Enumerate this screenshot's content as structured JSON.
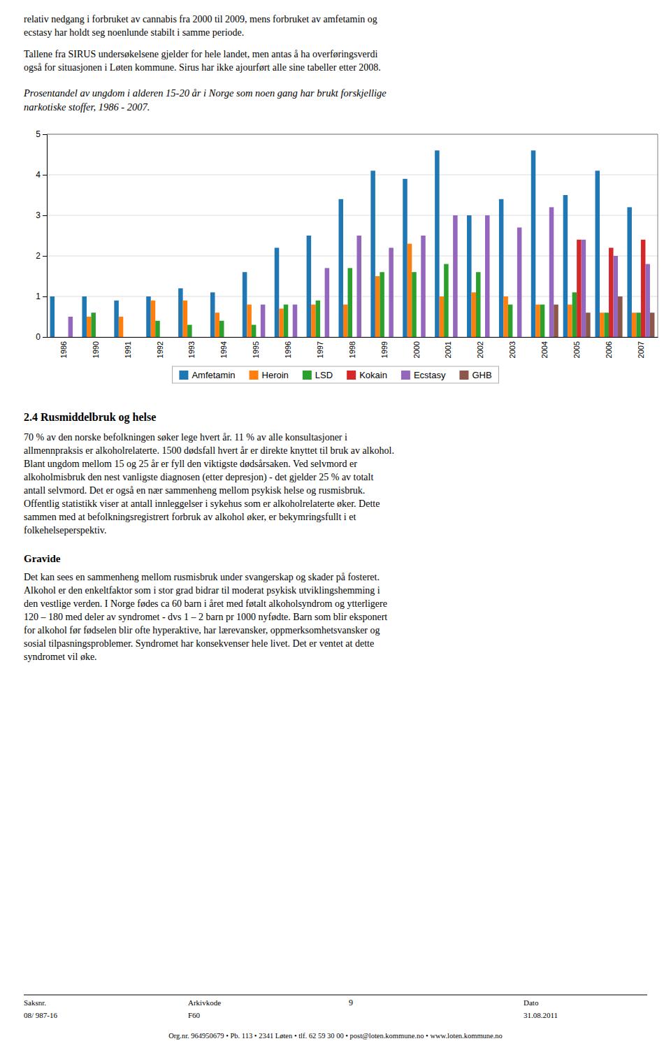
{
  "chart_data": {
    "type": "bar",
    "title": "Prosentandel av ungdom i alderen 15-20 år i Norge som noen gang har brukt forskjellige\nnarkotiske stoffer, 1986 - 2007.",
    "categories": [
      "1986",
      "1990",
      "1991",
      "1992",
      "1993",
      "1994",
      "1995",
      "1996",
      "1997",
      "1998",
      "1999",
      "2000",
      "2001",
      "2002",
      "2003",
      "2004",
      "2005",
      "2006",
      "2007"
    ],
    "series": [
      {
        "name": "Amfetamin",
        "values": [
          1.0,
          1.0,
          0.9,
          1.0,
          1.2,
          1.1,
          1.6,
          2.2,
          2.5,
          3.4,
          4.1,
          3.9,
          4.6,
          3.0,
          3.4,
          4.6,
          3.5,
          4.1,
          3.2
        ]
      },
      {
        "name": "Heroin",
        "values": [
          0.0,
          0.5,
          0.5,
          0.9,
          0.9,
          0.6,
          0.8,
          0.7,
          0.8,
          0.8,
          1.5,
          2.3,
          1.0,
          1.1,
          1.0,
          0.8,
          0.8,
          0.6,
          0.6
        ]
      },
      {
        "name": "LSD",
        "values": [
          0.0,
          0.6,
          0.0,
          0.4,
          0.3,
          0.4,
          0.3,
          0.8,
          0.9,
          1.7,
          1.6,
          1.6,
          1.8,
          1.6,
          0.8,
          0.8,
          1.1,
          0.6,
          0.6
        ]
      },
      {
        "name": "Kokain",
        "values": [
          0.0,
          0.0,
          0.0,
          0.0,
          0.0,
          0.0,
          0.0,
          0.0,
          0.0,
          0.0,
          0.0,
          0.0,
          0.0,
          0.0,
          0.0,
          0.0,
          2.4,
          2.2,
          2.4
        ]
      },
      {
        "name": "Ecstasy",
        "values": [
          0.5,
          0.0,
          0.0,
          0.0,
          0.0,
          0.0,
          0.8,
          0.8,
          1.7,
          2.5,
          2.2,
          2.5,
          3.0,
          3.0,
          2.7,
          3.2,
          2.4,
          2.0,
          1.8
        ]
      },
      {
        "name": "GHB",
        "values": [
          0.0,
          0.0,
          0.0,
          0.0,
          0.0,
          0.0,
          0.0,
          0.0,
          0.0,
          0.0,
          0.0,
          0.0,
          0.0,
          0.0,
          0.0,
          0.8,
          0.6,
          1.0,
          0.6
        ]
      }
    ],
    "ylim": [
      0,
      5
    ],
    "yticks": [
      0,
      1,
      2,
      3,
      4,
      5
    ],
    "grid": true,
    "legend": "bottom"
  },
  "page_text": {
    "paragraphs": [
      [
        "relativ nedgang i forbruket av cannabis fra 2000 til 2009, mens forbruket av amfetamin og",
        "ecstasy har holdt seg noenlunde stabilt i samme periode."
      ],
      [
        "Tallene fra SIRUS undersøkelsene gjelder for hele landet, men antas å ha overføringsverdi",
        "også for situasjonen i Løten kommune. Sirus har ikke ajourført alle sine tabeller etter 2008."
      ]
    ],
    "section_head": "2.4 Rusmiddelbruk og helse",
    "body1": [
      "70 % av den norske befolkningen søker lege hvert år. 11 % av alle konsultasjoner i",
      "allmennpraksis er alkoholrelaterte. 1500 dødsfall hvert år er direkte knyttet til bruk av alkohol.",
      "Blant ungdom mellom 15 og 25 år er fyll den viktigste dødsårsaken. Ved selvmord er",
      "alkoholmisbruk den nest vanligste diagnosen (etter depresjon) - det gjelder 25 % av totalt",
      "antall selvmord. Det er også en nær sammenheng mellom psykisk helse og rusmisbruk.",
      "Offentlig statistikk viser at antall innleggelser i sykehus som er alkoholrelaterte øker. Dette",
      "sammen med at befolkningsregistrert forbruk av alkohol øker, er bekymringsfullt i et",
      "folkehelseperspektiv."
    ],
    "gravide_head": "Gravide",
    "body2": [
      "Det kan sees en sammenheng mellom rusmisbruk under svangerskap og skader på fosteret.",
      "Alkohol er den enkeltfaktor som i stor grad bidrar til moderat psykisk utviklingshemming i",
      "den vestlige verden. I Norge fødes ca 60 barn i året med føtalt alkoholsyndrom og ytterligere",
      "120 – 180 med deler av syndromet - dvs 1 – 2 barn pr 1000 nyfødte. Barn som blir eksponert",
      "for alkohol før fødselen blir ofte hyperaktive, har lærevansker, oppmerksomhetsvansker og",
      "sosial tilpasningsproblemer. Syndromet har konsekvenser hele livet. Det er ventet at dette",
      "syndromet vil øke."
    ],
    "footer": {
      "labels": [
        "Saksnr.",
        "Arkivkode",
        "9",
        "Dato"
      ],
      "values": [
        "08/ 987-16",
        "F60",
        "31.08.2011"
      ],
      "org": "Org.nr. 964950679 • Pb. 113 • 2341 Løten • tlf. 62 59 30 00 • post@loten.kommune.no • www.loten.kommune.no"
    }
  }
}
